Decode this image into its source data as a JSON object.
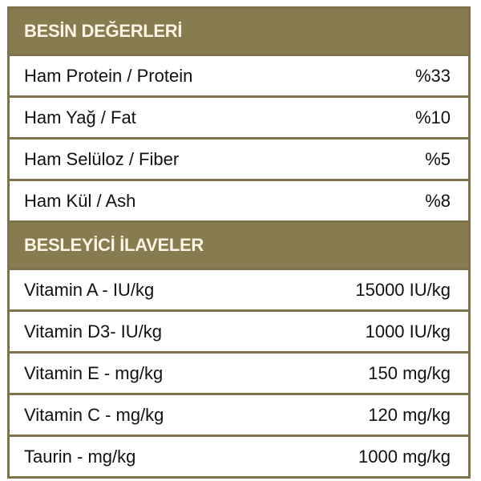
{
  "sections": [
    {
      "title": "BESİN DEĞERLERİ",
      "rows": [
        {
          "label": "Ham Protein / Protein",
          "value": "%33"
        },
        {
          "label": "Ham Yağ / Fat",
          "value": "%10"
        },
        {
          "label": "Ham Selüloz / Fiber",
          "value": "%5"
        },
        {
          "label": "Ham Kül / Ash",
          "value": "%8"
        }
      ]
    },
    {
      "title": "BESLEYİCİ İLAVELER",
      "rows": [
        {
          "label": "Vitamin A - IU/kg",
          "value": "15000 IU/kg"
        },
        {
          "label": "Vitamin D3- IU/kg",
          "value": "1000 IU/kg"
        },
        {
          "label": "Vitamin E - mg/kg",
          "value": "150 mg/kg"
        },
        {
          "label": "Vitamin C - mg/kg",
          "value": "120 mg/kg"
        },
        {
          "label": "Taurin - mg/kg",
          "value": "1000 mg/kg"
        }
      ]
    }
  ],
  "colors": {
    "header": "#877b50",
    "border": "#7d7249",
    "header_text": "#fbf6e6"
  }
}
